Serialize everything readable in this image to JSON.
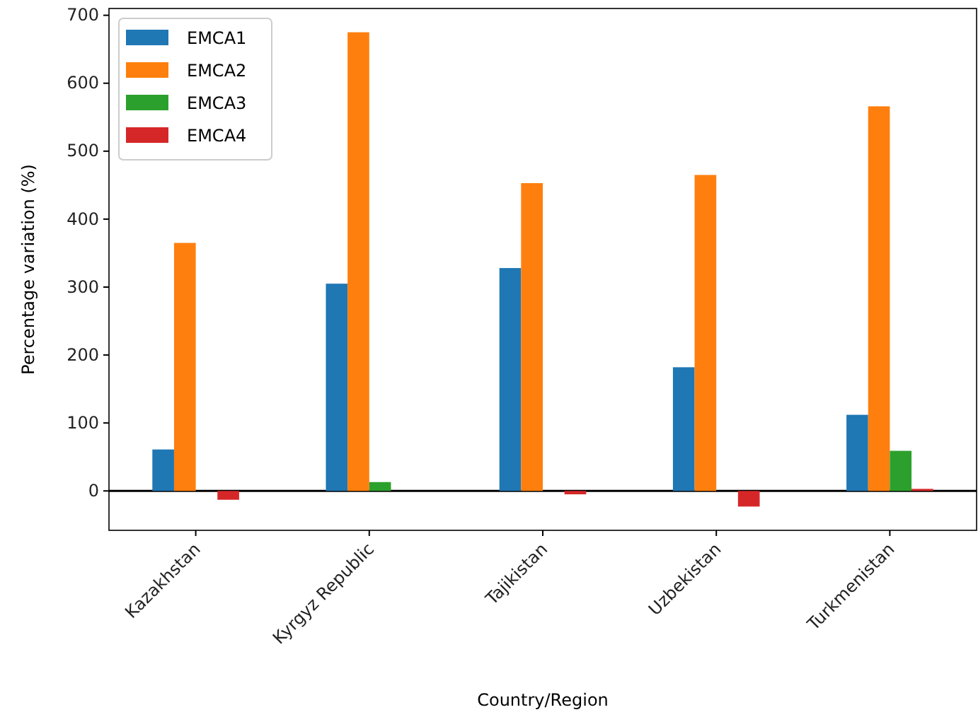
{
  "chart_data": {
    "type": "bar",
    "xlabel": "Country/Region",
    "ylabel": "Percentage variation (%)",
    "categories": [
      "Kazakhstan",
      "Kyrgyz Republic",
      "Tajikistan",
      "Uzbekistan",
      "Turkmenistan"
    ],
    "series": [
      {
        "name": "EMCA1",
        "color": "#1f77b4",
        "values": [
          61,
          305,
          328,
          182,
          112
        ]
      },
      {
        "name": "EMCA2",
        "color": "#ff7f0e",
        "values": [
          365,
          675,
          453,
          465,
          566
        ]
      },
      {
        "name": "EMCA3",
        "color": "#2ca02c",
        "values": [
          0,
          13,
          0,
          0,
          59
        ]
      },
      {
        "name": "EMCA4",
        "color": "#d62728",
        "values": [
          -13,
          0,
          -5,
          -23,
          3
        ]
      }
    ],
    "ylim": [
      -58,
      710
    ],
    "yticks": [
      0,
      100,
      200,
      300,
      400,
      500,
      600,
      700
    ],
    "ref_lines": [
      {
        "axis": "y",
        "value": 0,
        "color": "#000000"
      }
    ],
    "legend": "top left",
    "grid": false
  }
}
